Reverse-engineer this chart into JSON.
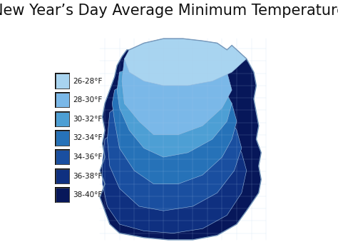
{
  "title": "New Year’s Day Average Minimum Temperature",
  "title_fontsize": 15,
  "background_color": "#ffffff",
  "legend_labels": [
    "26-28°F",
    "28-30°F",
    "30-32°F",
    "32-34°F",
    "34-36°F",
    "36-38°F",
    "38-40°F"
  ],
  "legend_colors": [
    "#a8d4f0",
    "#7ab8e8",
    "#4d9fd4",
    "#2672b8",
    "#1a4fa0",
    "#0f3080",
    "#07175a"
  ]
}
